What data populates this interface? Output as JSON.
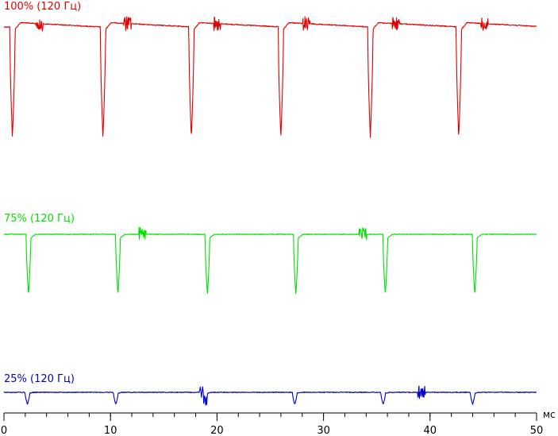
{
  "chart_data": {
    "type": "line",
    "x_unit_label": "мс",
    "xlim": [
      0,
      50
    ],
    "x_ticks": [
      0,
      10,
      20,
      30,
      40,
      50
    ],
    "x_ticks_labeled": [
      "0",
      "10",
      "20",
      "30",
      "40",
      "50"
    ],
    "grid": false,
    "legend": "inline labels above each trace",
    "series": [
      {
        "name": "100% (120 Гц)",
        "color": "#e00000",
        "pulse_times_ms": [
          0.8,
          9.3,
          17.6,
          26.0,
          34.4,
          42.7
        ],
        "pulse_depth": "full (drops from top level to bottom of trace band)",
        "noise_bursts_ms": [
          3.3,
          11.6,
          20.0,
          28.4,
          36.8,
          45.1
        ]
      },
      {
        "name": "75% (120 Гц)",
        "color": "#00e000",
        "pulse_times_ms": [
          2.3,
          10.7,
          19.1,
          27.4,
          35.8,
          44.2
        ],
        "pulse_depth": "medium",
        "noise_bursts_ms": [
          13.0,
          33.7
        ]
      },
      {
        "name": "25% (120 Гц)",
        "color": "#0000c8",
        "pulse_times_ms": [
          2.2,
          10.5,
          18.9,
          27.3,
          35.6,
          44.0
        ],
        "pulse_depth": "small",
        "noise_bursts_ms": [
          18.7,
          39.2
        ]
      }
    ]
  }
}
